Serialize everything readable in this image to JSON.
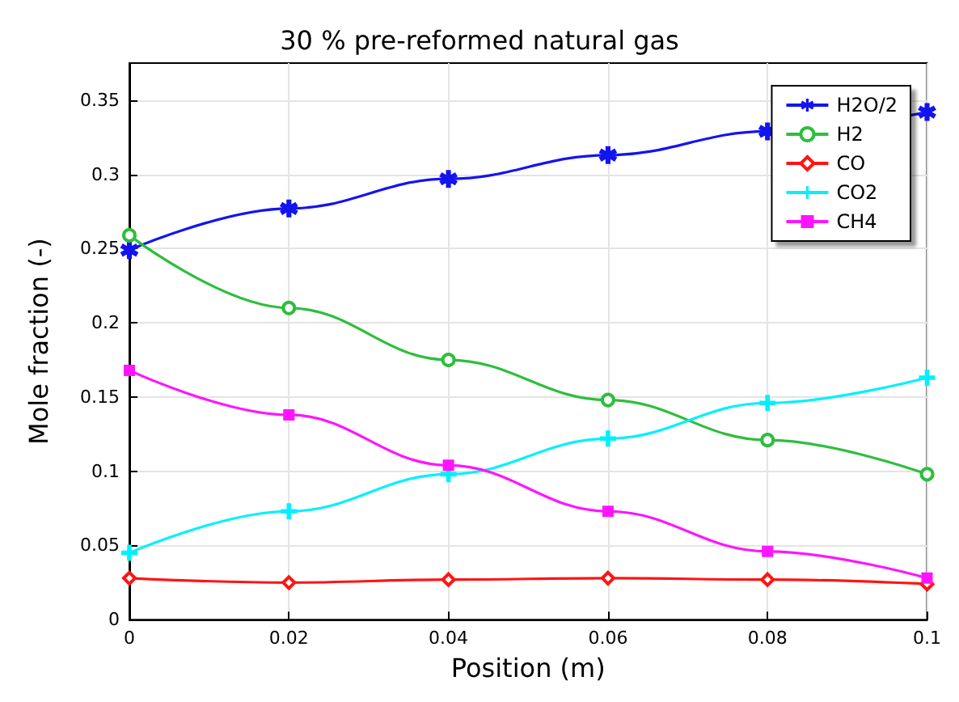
{
  "chart_data": {
    "type": "line",
    "title": "30 % pre-reformed natural gas",
    "xlabel": "Position (m)",
    "ylabel": "Mole fraction (-)",
    "x": [
      0,
      0.02,
      0.04,
      0.06,
      0.08,
      0.1
    ],
    "series": [
      {
        "name": "H2O/2",
        "color": "#1414f0",
        "marker": "star",
        "values": [
          0.249,
          0.277,
          0.297,
          0.313,
          0.329,
          0.342
        ]
      },
      {
        "name": "H2",
        "color": "#2dbe3c",
        "marker": "circle",
        "values": [
          0.259,
          0.21,
          0.175,
          0.148,
          0.121,
          0.098
        ]
      },
      {
        "name": "CO",
        "color": "#ff1414",
        "marker": "diamond",
        "values": [
          0.028,
          0.025,
          0.027,
          0.028,
          0.027,
          0.024
        ]
      },
      {
        "name": "CO2",
        "color": "#00f0ff",
        "marker": "cross",
        "values": [
          0.045,
          0.073,
          0.098,
          0.122,
          0.146,
          0.163
        ]
      },
      {
        "name": "CH4",
        "color": "#ff14ff",
        "marker": "square",
        "values": [
          0.168,
          0.138,
          0.104,
          0.073,
          0.046,
          0.028
        ]
      }
    ],
    "xlim": [
      0,
      0.1
    ],
    "xticks": [
      0,
      0.02,
      0.04,
      0.06,
      0.08,
      0.1
    ],
    "ylim": [
      0,
      0.375
    ],
    "yticks": [
      0,
      0.05,
      0.1,
      0.15,
      0.2,
      0.25,
      0.3,
      0.35
    ],
    "grid": true,
    "legend": "top right",
    "line_style": "solid"
  }
}
